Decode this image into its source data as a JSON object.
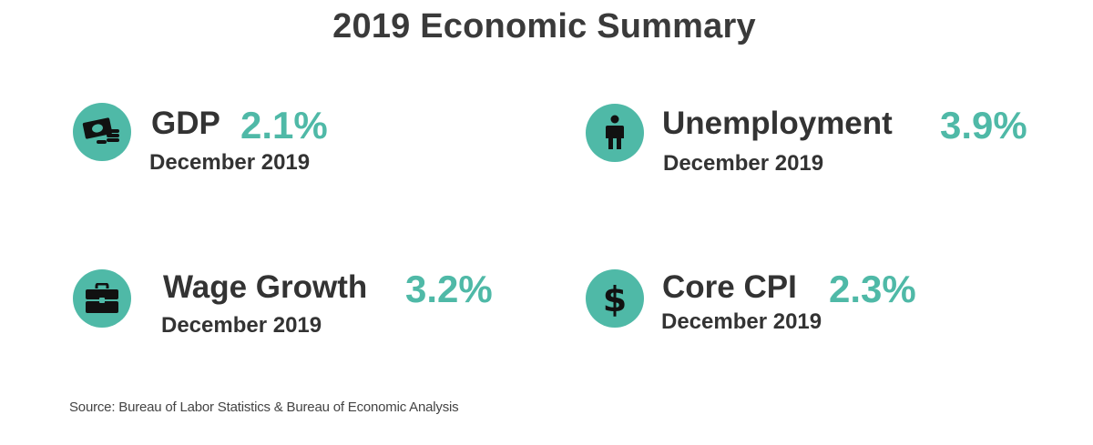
{
  "title": "2019 Economic Summary",
  "colors": {
    "accent": "#4fb9a7",
    "text": "#333333"
  },
  "metrics": [
    {
      "label": "GDP",
      "value": "2.1%",
      "period": "December 2019",
      "icon": "money-coins-icon"
    },
    {
      "label": "Unemployment",
      "value": "3.9%",
      "period": "December 2019",
      "icon": "person-icon"
    },
    {
      "label": "Wage Growth",
      "value": "3.2%",
      "period": "December 2019",
      "icon": "briefcase-icon"
    },
    {
      "label": "Core CPI",
      "value": "2.3%",
      "period": "December 2019",
      "icon": "dollar-sign-icon"
    }
  ],
  "source": "Source: Bureau of Labor Statistics & Bureau of Economic Analysis"
}
